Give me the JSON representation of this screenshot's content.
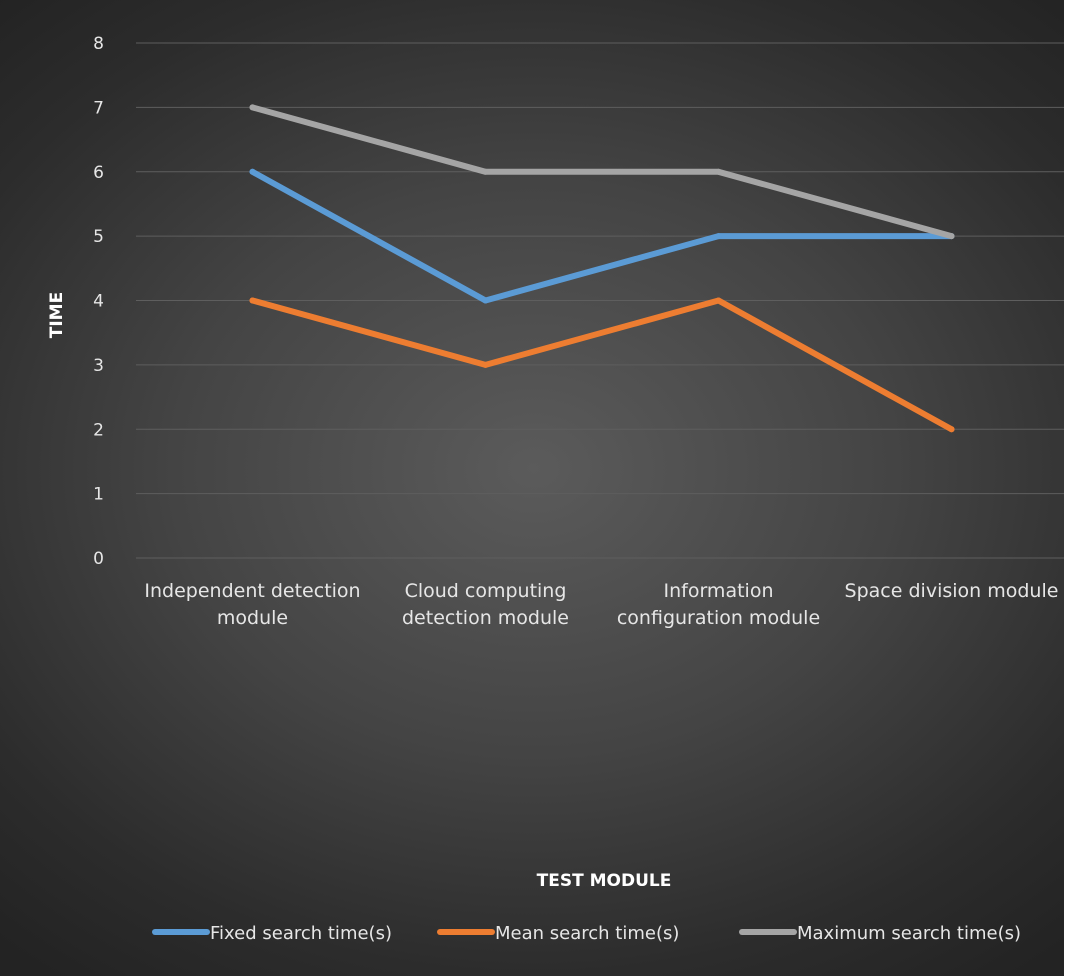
{
  "chart_data": {
    "type": "line",
    "title": "",
    "xlabel": "TEST MODULE",
    "ylabel": "TIME",
    "ylim": [
      0,
      8
    ],
    "yticks": [
      "0",
      "1",
      "2",
      "3",
      "4",
      "5",
      "6",
      "7",
      "8"
    ],
    "grid": true,
    "legend_position": "bottom",
    "categories": [
      [
        "Independent detection",
        "module"
      ],
      [
        "Cloud computing",
        "detection module"
      ],
      [
        "Information",
        "configuration module"
      ],
      [
        "Space division module"
      ]
    ],
    "series": [
      {
        "name": "Fixed search time(s)",
        "color": "#5b9bd5",
        "values": [
          6,
          4,
          5,
          5
        ]
      },
      {
        "name": "Mean search time(s)",
        "color": "#ed7d31",
        "values": [
          4,
          3,
          4,
          2
        ]
      },
      {
        "name": "Maximum search time(s)",
        "color": "#a5a5a5",
        "values": [
          7,
          6,
          6,
          5
        ]
      }
    ],
    "colors": {
      "gridline": "#5e5e5e",
      "text": "#e6e6e6",
      "axis_title": "#ffffff"
    }
  }
}
